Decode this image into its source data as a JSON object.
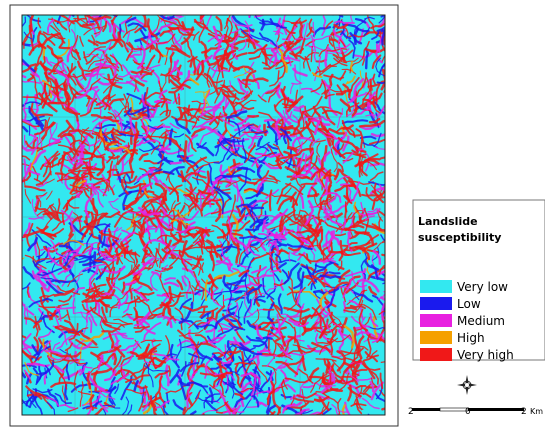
{
  "legend": {
    "title": "Landslide susceptibility",
    "classes": [
      {
        "label": "Very low",
        "color": "#33e8f0"
      },
      {
        "label": "Low",
        "color": "#1a1aee"
      },
      {
        "label": "Medium",
        "color": "#e820e0"
      },
      {
        "label": "High",
        "color": "#f5a000"
      },
      {
        "label": "Very high",
        "color": "#f01818"
      }
    ]
  },
  "scale_bar": {
    "labels": [
      "2",
      "0",
      "2"
    ],
    "unit": "Km"
  }
}
